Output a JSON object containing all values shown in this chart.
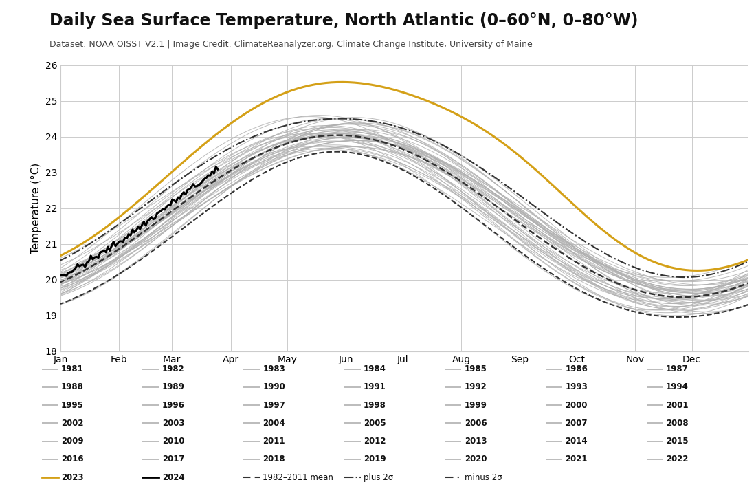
{
  "title": "Daily Sea Surface Temperature, North Atlantic (0–60°N, 0–80°W)",
  "subtitle": "Dataset: NOAA OISST V2.1 | Image Credit: ClimateReanalyzer.org, Climate Change Institute, University of Maine",
  "ylabel": "Temperature (°C)",
  "ylim": [
    18,
    26
  ],
  "yticks": [
    18,
    19,
    20,
    21,
    22,
    23,
    24,
    25,
    26
  ],
  "months": [
    "Jan",
    "Feb",
    "Mar",
    "Apr",
    "May",
    "Jun",
    "Jul",
    "Aug",
    "Sep",
    "Oct",
    "Nov",
    "Dec"
  ],
  "background_color": "#ffffff",
  "gray_color": "#b0b0b0",
  "orange_color": "#d4a017",
  "black_color": "#000000",
  "dashed_color": "#333333",
  "title_fontsize": 17,
  "subtitle_fontsize": 9,
  "axis_fontsize": 11,
  "tick_fontsize": 10,
  "legend_years": [
    [
      "1981",
      "1982",
      "1983",
      "1984",
      "1985",
      "1986",
      "1987"
    ],
    [
      "1988",
      "1989",
      "1990",
      "1991",
      "1992",
      "1993",
      "1994"
    ],
    [
      "1995",
      "1996",
      "1997",
      "1998",
      "1999",
      "2000",
      "2001"
    ],
    [
      "2002",
      "2003",
      "2004",
      "2005",
      "2006",
      "2007",
      "2008"
    ],
    [
      "2009",
      "2010",
      "2011",
      "2012",
      "2013",
      "2014",
      "2015"
    ],
    [
      "2016",
      "2017",
      "2018",
      "2019",
      "2020",
      "2021",
      "2022"
    ]
  ]
}
